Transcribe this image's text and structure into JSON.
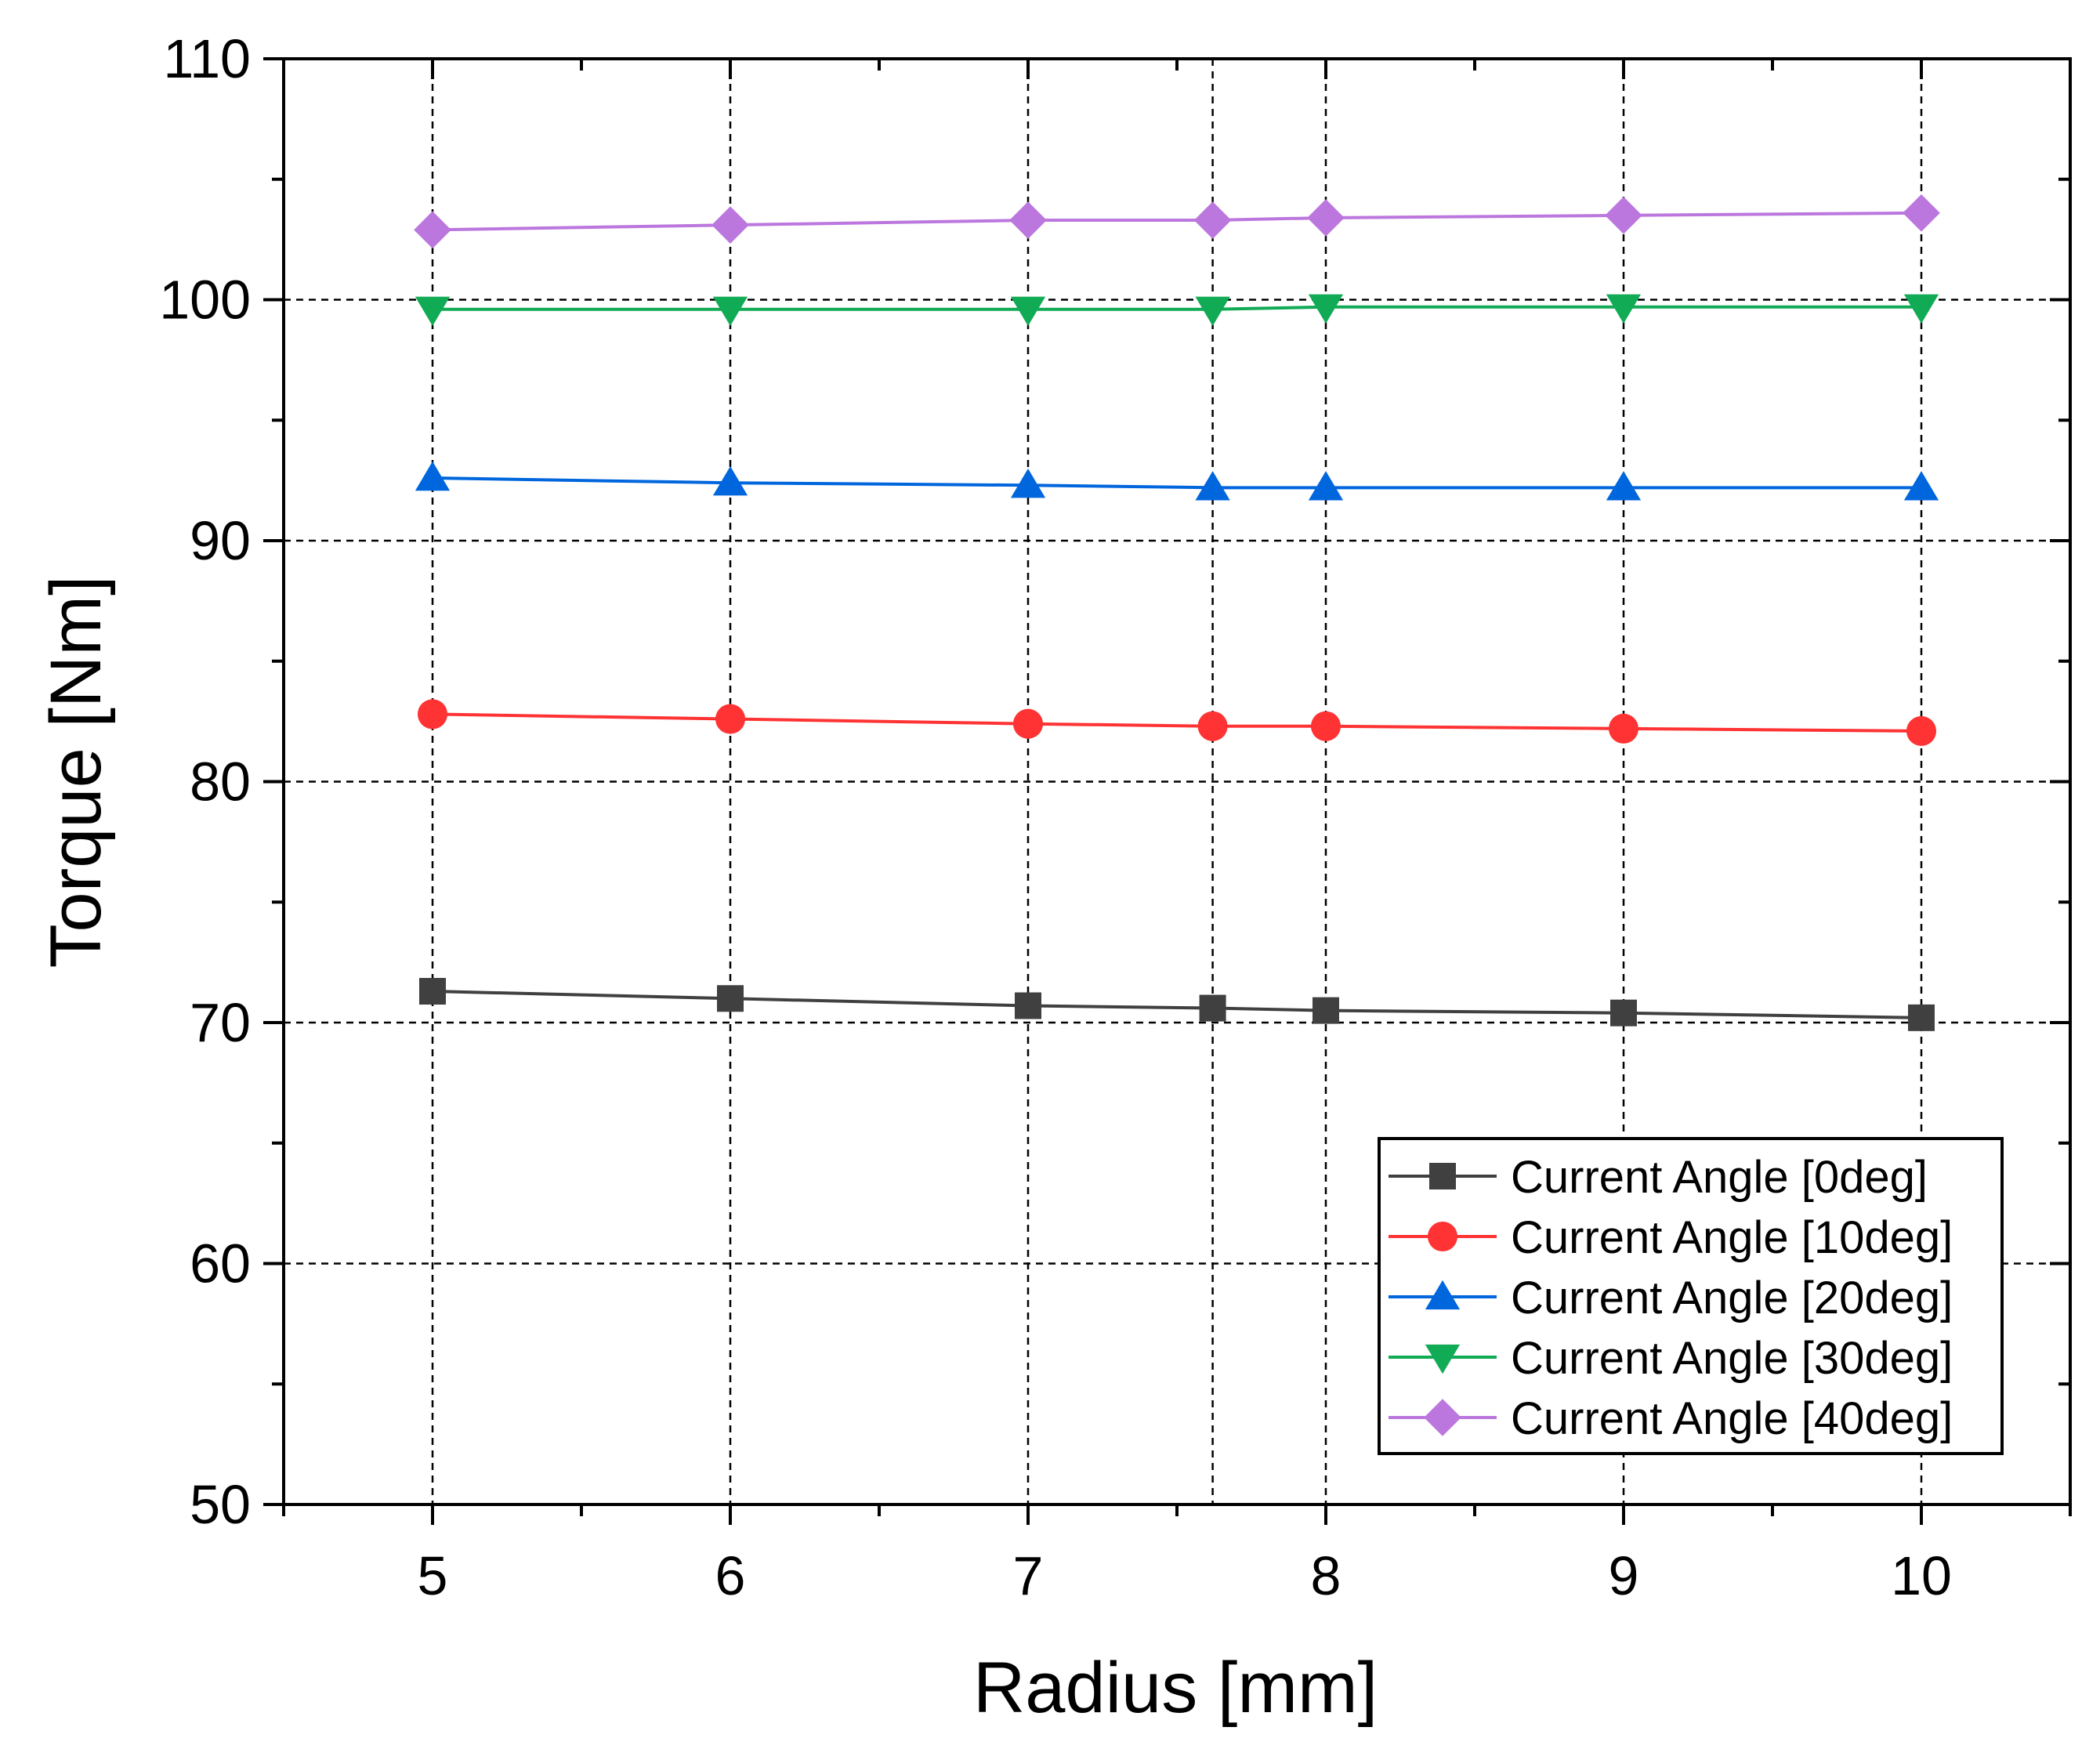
{
  "chart_data": {
    "type": "line",
    "title": "",
    "xlabel": "Radius [mm]",
    "ylabel": "Torque [Nm]",
    "xlim": [
      4.5,
      10.5
    ],
    "ylim": [
      50,
      110
    ],
    "x_ticks": [
      5,
      6,
      7,
      8,
      9,
      10
    ],
    "x_minor_ticks": [
      4.5,
      5.5,
      6.5,
      7.5,
      8.5,
      9.5,
      10.5
    ],
    "y_ticks": [
      50,
      60,
      70,
      80,
      90,
      100,
      110
    ],
    "y_minor_ticks": [
      55,
      65,
      75,
      85,
      95,
      105
    ],
    "x_tick_labels": [
      "5",
      "6",
      "7",
      "8",
      "9",
      "10"
    ],
    "y_tick_labels": [
      "50",
      "60",
      "70",
      "80",
      "90",
      "100",
      "110"
    ],
    "grid": true,
    "grid_extra_x": [
      7.62
    ],
    "legend_position": "bottom-right",
    "x": [
      5,
      6,
      7,
      7.62,
      8,
      9,
      10
    ],
    "series": [
      {
        "name": "Current Angle [0deg]",
        "marker": "square",
        "color": "#404040",
        "values": [
          71.3,
          71.0,
          70.7,
          70.6,
          70.5,
          70.4,
          70.2
        ]
      },
      {
        "name": "Current Angle [10deg]",
        "marker": "circle",
        "color": "#ff3333",
        "values": [
          82.8,
          82.6,
          82.4,
          82.3,
          82.3,
          82.2,
          82.1
        ]
      },
      {
        "name": "Current Angle [20deg]",
        "marker": "triangle-up",
        "color": "#0066dd",
        "values": [
          92.6,
          92.4,
          92.3,
          92.2,
          92.2,
          92.2,
          92.2
        ]
      },
      {
        "name": "Current Angle [30deg]",
        "marker": "triangle-down",
        "color": "#11aa55",
        "values": [
          99.6,
          99.6,
          99.6,
          99.6,
          99.7,
          99.7,
          99.7
        ]
      },
      {
        "name": "Current Angle [40deg]",
        "marker": "diamond",
        "color": "#bb77dd",
        "values": [
          102.9,
          103.1,
          103.3,
          103.3,
          103.4,
          103.5,
          103.6
        ]
      }
    ]
  }
}
